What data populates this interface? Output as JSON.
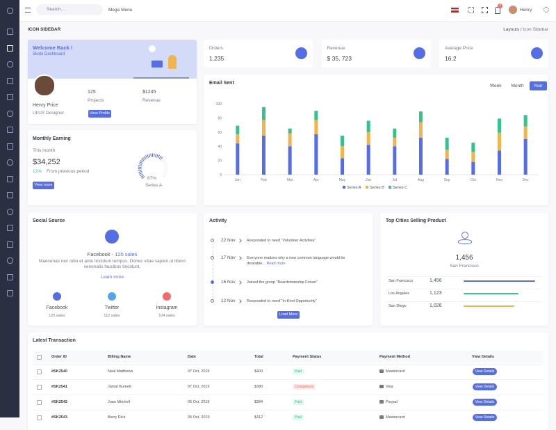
{
  "topbar": {
    "search_placeholder": "Search...",
    "mega_menu": "Mega Menu",
    "notifications": "3",
    "user": "Henry"
  },
  "page": {
    "title": "ICON SIDEBAR",
    "breadcrumb": [
      "Layouts",
      "Icon Sidebar"
    ]
  },
  "welcome": {
    "title": "Welcome Back !",
    "subtitle": "Skote Dashboard",
    "name": "Henry Price",
    "role": "UI/UX Designer",
    "projects": "125",
    "projects_label": "Projects",
    "revenue": "$1245",
    "revenue_label": "Revenue",
    "button": "View Profile"
  },
  "stats": [
    {
      "label": "Orders",
      "value": "1,235"
    },
    {
      "label": "Revenue",
      "value": "$ 35, 723"
    },
    {
      "label": "Average Price",
      "value": "16.2"
    }
  ],
  "email_sent": {
    "type": "bar",
    "stacked": true,
    "title": "Email Sent",
    "periods": [
      "Week",
      "Month",
      "Year"
    ],
    "active_period": 2,
    "categories": [
      "Jan",
      "Feb",
      "Mar",
      "Apr",
      "May",
      "Jun",
      "Jul",
      "Aug",
      "Sep",
      "Oct",
      "Nov",
      "Dec"
    ],
    "series": [
      {
        "name": "Series A",
        "color": "#556ee6",
        "values": [
          44,
          55,
          40,
          57,
          23,
          42,
          40,
          52,
          22,
          18,
          34,
          50
        ]
      },
      {
        "name": "Series B",
        "color": "#f1b44c",
        "values": [
          13,
          22,
          18,
          20,
          17,
          18,
          12,
          22,
          13,
          14,
          25,
          18
        ]
      },
      {
        "name": "Series C",
        "color": "#34c38f",
        "values": [
          12,
          18,
          7,
          13,
          15,
          16,
          13,
          15,
          17,
          13,
          20,
          16
        ]
      }
    ],
    "ylim": [
      0,
      100
    ],
    "yticks": [
      0,
      20,
      40,
      60,
      80,
      100
    ]
  },
  "monthly_earning": {
    "title": "Monthly Earning",
    "subtitle": "This month",
    "value": "$34,252",
    "change": "12%",
    "change_note": "From previous period",
    "button": "View more",
    "gauge": {
      "value": 67,
      "value_label": "67%",
      "label": "Series A",
      "color": "#556ee6"
    }
  },
  "social_source": {
    "title": "Social Source",
    "network": "Facebook",
    "network_sales": "- 125 sales",
    "text": "Maecenas nec odio et ante tincidunt tempus. Donec vitae sapien ut libero venenatis faucibus tincidunt.",
    "link": "Learn more",
    "items": [
      {
        "name": "Facebook",
        "sales": "125 sales",
        "color": "#556ee6"
      },
      {
        "name": "Twitter",
        "sales": "112 sales",
        "color": "#50a5f1"
      },
      {
        "name": "Instagram",
        "sales": "104 sales",
        "color": "#f46a6a"
      }
    ]
  },
  "activity": {
    "title": "Activity",
    "items": [
      {
        "date": "22 Nov",
        "text": "Responded to need “Volunteer Activities”"
      },
      {
        "date": "17 Nov",
        "text": "Everyone realizes why a new common language would be desirable...",
        "link": "Read more"
      },
      {
        "date": "15 Nov",
        "text": "Joined the group “Boardsmanship Forum”"
      },
      {
        "date": "12 Nov",
        "text": "Responded to need “In-Kind Opportunity”"
      }
    ],
    "button": "Load More"
  },
  "top_cities": {
    "title": "Top Cities Selling Product",
    "highlight_value": "1,456",
    "highlight_city": "San Francisco",
    "rows": [
      {
        "city": "San Francisco",
        "value": 1456,
        "value_label": "1,456",
        "color": "#556ee6"
      },
      {
        "city": "Los Angeles",
        "value": 1123,
        "value_label": "1,123",
        "color": "#34c38f"
      },
      {
        "city": "San Diego",
        "value": 1026,
        "value_label": "1,026",
        "color": "#f1b44c"
      }
    ]
  },
  "transactions": {
    "title": "Latest Transaction",
    "columns": [
      "Order ID",
      "Billing Name",
      "Date",
      "Total",
      "Payment Status",
      "Payment Method",
      "View Details"
    ],
    "button": "View Details",
    "rows": [
      {
        "id": "#SK2540",
        "name": "Neal Matthews",
        "date": "07 Oct, 2019",
        "total": "$400",
        "status": "Paid",
        "status_color": "#34c38f",
        "method": "Mastercard"
      },
      {
        "id": "#SK2541",
        "name": "Jamal Burnett",
        "date": "07 Oct, 2019",
        "total": "$380",
        "status": "Chargeback",
        "status_color": "#f46a6a",
        "method": "Visa"
      },
      {
        "id": "#SK2542",
        "name": "Juan Mitchell",
        "date": "06 Oct, 2019",
        "total": "$384",
        "status": "Paid",
        "status_color": "#34c38f",
        "method": "Paypal"
      },
      {
        "id": "#SK2543",
        "name": "Barry Dick",
        "date": "05 Oct, 2019",
        "total": "$412",
        "status": "Paid",
        "status_color": "#34c38f",
        "method": "Mastercard"
      }
    ]
  }
}
